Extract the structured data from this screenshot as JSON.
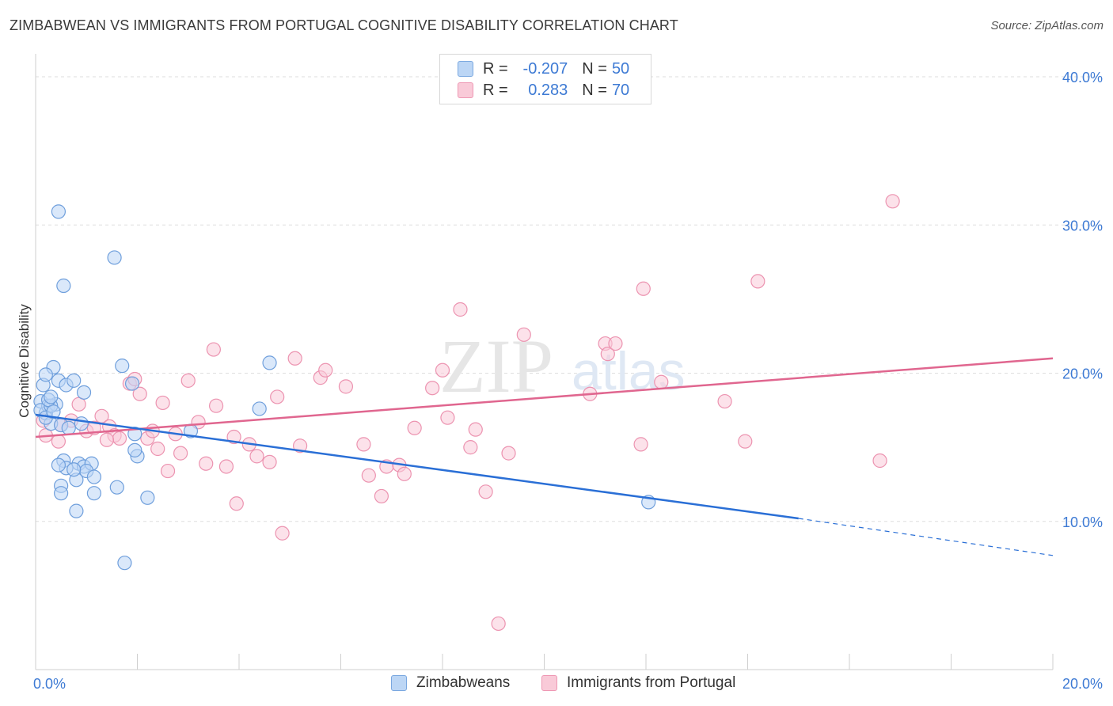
{
  "title": "ZIMBABWEAN VS IMMIGRANTS FROM PORTUGAL COGNITIVE DISABILITY CORRELATION CHART",
  "source": "Source: ZipAtlas.com",
  "watermark": {
    "zip": "ZIP",
    "atlas": "atlas"
  },
  "legend": {
    "rows": [
      {
        "r_label": "R =",
        "r_value": "-0.207",
        "n_label": "N =",
        "n_value": "50",
        "color": "blue"
      },
      {
        "r_label": "R =",
        "r_value": "0.283",
        "n_label": "N =",
        "n_value": "70",
        "color": "pink"
      }
    ]
  },
  "bottom_legend": {
    "series1": "Zimbabweans",
    "series2": "Immigrants from Portugal"
  },
  "colors": {
    "blue_fill": "#bcd6f5",
    "blue_stroke": "#6f9fdc",
    "blue_line": "#2a6fd6",
    "pink_fill": "#f9cad8",
    "pink_stroke": "#ec93b0",
    "pink_line": "#e0668f",
    "tick_text": "#3d7ad4"
  },
  "chart_data": {
    "type": "scatter",
    "title": "ZIMBABWEAN VS IMMIGRANTS FROM PORTUGAL COGNITIVE DISABILITY CORRELATION CHART",
    "xlabel": "",
    "ylabel": "Cognitive Disability",
    "xlim": [
      0,
      20
    ],
    "ylim": [
      0,
      40
    ],
    "x_tick_labels": [
      "0.0%",
      "20.0%"
    ],
    "y_tick_values": [
      10,
      20,
      30,
      40
    ],
    "y_tick_labels": [
      "10.0%",
      "20.0%",
      "30.0%",
      "40.0%"
    ],
    "grid": true,
    "legend_placement": "bottom",
    "series": [
      {
        "name": "Zimbabweans",
        "points": [
          [
            0.1,
            18.1
          ],
          [
            0.15,
            19.2
          ],
          [
            0.2,
            17.3
          ],
          [
            0.25,
            17.8
          ],
          [
            0.3,
            16.6
          ],
          [
            0.35,
            20.4
          ],
          [
            0.1,
            17.5
          ],
          [
            0.2,
            19.9
          ],
          [
            0.4,
            17.9
          ],
          [
            0.45,
            19.5
          ],
          [
            0.3,
            17.8
          ],
          [
            0.25,
            18.2
          ],
          [
            0.5,
            16.5
          ],
          [
            0.6,
            19.2
          ],
          [
            0.75,
            19.5
          ],
          [
            0.95,
            18.7
          ],
          [
            0.55,
            14.1
          ],
          [
            0.5,
            12.4
          ],
          [
            0.6,
            13.6
          ],
          [
            0.8,
            12.8
          ],
          [
            0.85,
            13.9
          ],
          [
            0.95,
            13.7
          ],
          [
            1.1,
            13.9
          ],
          [
            1.0,
            13.4
          ],
          [
            0.5,
            11.9
          ],
          [
            0.8,
            10.7
          ],
          [
            1.15,
            11.9
          ],
          [
            0.45,
            30.9
          ],
          [
            0.55,
            25.9
          ],
          [
            1.55,
            27.8
          ],
          [
            1.7,
            20.5
          ],
          [
            1.9,
            19.3
          ],
          [
            1.95,
            15.9
          ],
          [
            2.0,
            14.4
          ],
          [
            1.6,
            12.3
          ],
          [
            2.2,
            11.6
          ],
          [
            1.75,
            7.2
          ],
          [
            3.05,
            16.1
          ],
          [
            4.4,
            17.6
          ],
          [
            4.6,
            20.7
          ],
          [
            12.05,
            11.3
          ],
          [
            0.2,
            17.0
          ],
          [
            0.35,
            17.4
          ],
          [
            0.75,
            13.5
          ],
          [
            0.9,
            16.6
          ],
          [
            1.15,
            13.0
          ],
          [
            0.45,
            13.8
          ],
          [
            0.65,
            16.3
          ],
          [
            1.95,
            14.8
          ],
          [
            0.3,
            18.4
          ]
        ]
      },
      {
        "name": "Immigrants from Portugal",
        "points": [
          [
            0.2,
            15.8
          ],
          [
            0.45,
            15.4
          ],
          [
            0.5,
            16.5
          ],
          [
            0.7,
            16.8
          ],
          [
            0.85,
            17.9
          ],
          [
            1.0,
            16.1
          ],
          [
            1.15,
            16.3
          ],
          [
            1.3,
            17.1
          ],
          [
            1.45,
            16.4
          ],
          [
            1.55,
            15.8
          ],
          [
            1.65,
            15.6
          ],
          [
            1.85,
            19.3
          ],
          [
            1.95,
            19.6
          ],
          [
            2.05,
            18.6
          ],
          [
            2.2,
            15.6
          ],
          [
            2.3,
            16.1
          ],
          [
            2.4,
            14.9
          ],
          [
            2.5,
            18.0
          ],
          [
            2.6,
            13.4
          ],
          [
            2.75,
            15.9
          ],
          [
            2.85,
            14.6
          ],
          [
            3.0,
            19.5
          ],
          [
            3.2,
            16.7
          ],
          [
            3.35,
            13.9
          ],
          [
            3.5,
            21.6
          ],
          [
            3.55,
            17.8
          ],
          [
            3.75,
            13.7
          ],
          [
            3.9,
            15.7
          ],
          [
            3.95,
            11.2
          ],
          [
            4.2,
            15.2
          ],
          [
            4.35,
            14.4
          ],
          [
            4.6,
            14.0
          ],
          [
            4.75,
            18.4
          ],
          [
            4.85,
            9.2
          ],
          [
            5.1,
            21.0
          ],
          [
            5.2,
            15.1
          ],
          [
            5.6,
            19.7
          ],
          [
            5.7,
            20.2
          ],
          [
            6.1,
            19.1
          ],
          [
            6.45,
            15.2
          ],
          [
            6.55,
            13.1
          ],
          [
            6.8,
            11.7
          ],
          [
            6.9,
            13.7
          ],
          [
            7.15,
            13.8
          ],
          [
            7.25,
            13.2
          ],
          [
            7.45,
            16.3
          ],
          [
            7.8,
            19.0
          ],
          [
            8.0,
            20.2
          ],
          [
            8.1,
            17.0
          ],
          [
            8.35,
            24.3
          ],
          [
            8.55,
            15.0
          ],
          [
            8.65,
            16.2
          ],
          [
            8.85,
            12.0
          ],
          [
            9.1,
            3.1
          ],
          [
            9.3,
            14.6
          ],
          [
            9.6,
            22.6
          ],
          [
            10.9,
            18.6
          ],
          [
            11.2,
            22.0
          ],
          [
            11.25,
            21.3
          ],
          [
            11.4,
            22.0
          ],
          [
            11.9,
            15.2
          ],
          [
            11.95,
            25.7
          ],
          [
            12.3,
            19.4
          ],
          [
            13.55,
            18.1
          ],
          [
            13.95,
            15.4
          ],
          [
            14.2,
            26.2
          ],
          [
            16.6,
            14.1
          ],
          [
            16.85,
            31.6
          ],
          [
            0.15,
            16.8
          ],
          [
            1.4,
            15.5
          ]
        ]
      }
    ],
    "trend_lines": [
      {
        "series": "Zimbabweans",
        "x_start": 0,
        "y_start": 17.2,
        "x_solid_end": 15.0,
        "y_solid_end": 10.2,
        "x_end": 20,
        "y_end": 7.7,
        "dashed_after": 15.0
      },
      {
        "series": "Immigrants from Portugal",
        "x_start": 0,
        "y_start": 15.7,
        "x_end": 20,
        "y_end": 21.0
      }
    ]
  }
}
